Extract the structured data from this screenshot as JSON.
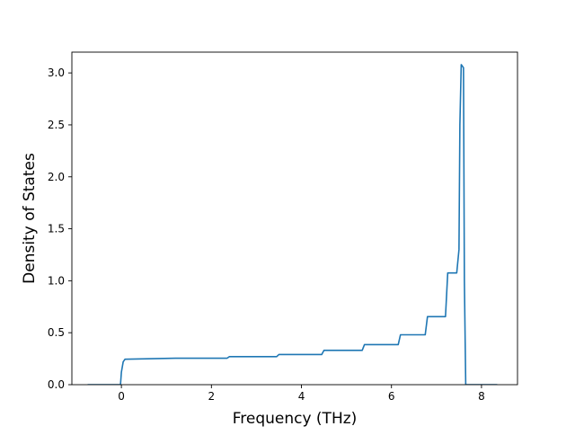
{
  "chart_data": {
    "type": "line",
    "title": "",
    "xlabel": "Frequency (THz)",
    "ylabel": "Density of States",
    "xlim": [
      -1.1,
      8.8
    ],
    "ylim": [
      0.0,
      3.2
    ],
    "xticks": [
      0,
      2,
      4,
      6,
      8
    ],
    "xtick_labels": [
      "0",
      "2",
      "4",
      "6",
      "8"
    ],
    "yticks": [
      0.0,
      0.5,
      1.0,
      1.5,
      2.0,
      2.5,
      3.0
    ],
    "ytick_labels": [
      "0.0",
      "0.5",
      "1.0",
      "1.5",
      "2.0",
      "2.5",
      "3.0"
    ],
    "grid": false,
    "legend": "none",
    "line_color": "#1f77b4",
    "series": [
      {
        "x": [
          -0.75,
          -0.02,
          0.0,
          0.04,
          0.08,
          1.2,
          2.35,
          2.4,
          3.45,
          3.5,
          4.45,
          4.5,
          5.35,
          5.4,
          6.15,
          6.2,
          6.75,
          6.8,
          7.2,
          7.25,
          7.45,
          7.5,
          7.52,
          7.55,
          7.6,
          7.62,
          7.65,
          8.35
        ],
        "y": [
          0.0,
          0.0,
          0.12,
          0.22,
          0.245,
          0.255,
          0.255,
          0.27,
          0.27,
          0.29,
          0.29,
          0.33,
          0.33,
          0.385,
          0.385,
          0.48,
          0.48,
          0.655,
          0.655,
          1.075,
          1.075,
          1.3,
          2.5,
          3.08,
          3.05,
          1.0,
          0.0,
          0.0
        ]
      }
    ]
  }
}
